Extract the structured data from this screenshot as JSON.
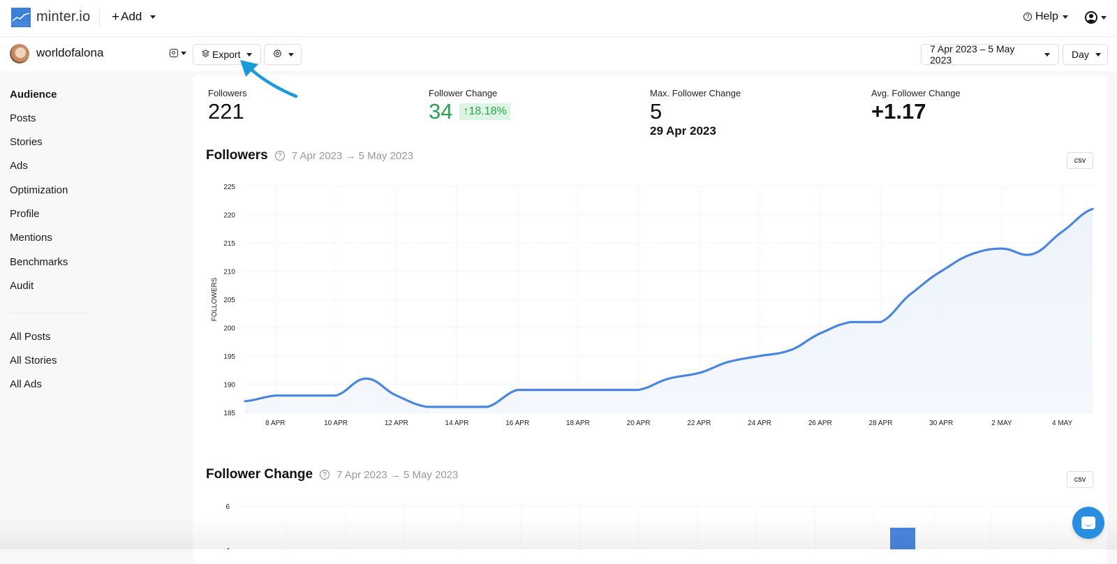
{
  "topbar": {
    "brand": "minter.io",
    "add_label": "Add",
    "help_label": "Help"
  },
  "subbar": {
    "account_name": "worldofalona",
    "export_label": "Export",
    "date_range": "7 Apr 2023 – 5 May 2023",
    "granularity": "Day"
  },
  "sidebar": {
    "items": [
      {
        "label": "Audience",
        "active": true
      },
      {
        "label": "Posts"
      },
      {
        "label": "Stories"
      },
      {
        "label": "Ads"
      },
      {
        "label": "Optimization"
      },
      {
        "label": "Profile"
      },
      {
        "label": "Mentions"
      },
      {
        "label": "Benchmarks"
      },
      {
        "label": "Audit"
      }
    ],
    "secondary": [
      {
        "label": "All Posts"
      },
      {
        "label": "All Stories"
      },
      {
        "label": "All Ads"
      }
    ]
  },
  "stats": {
    "followers": {
      "label": "Followers",
      "value": "221"
    },
    "follower_change": {
      "label": "Follower Change",
      "value": "34",
      "pct": "18.18%"
    },
    "max_change": {
      "label": "Max. Follower Change",
      "value": "5",
      "date": "29 Apr 2023"
    },
    "avg_change": {
      "label": "Avg. Follower Change",
      "value": "+1.17"
    }
  },
  "sections": {
    "followers": {
      "title": "Followers",
      "range": "7 Apr 2023 → 5 May 2023",
      "csv": "csv"
    },
    "follower_change": {
      "title": "Follower Change",
      "range": "7 Apr 2023 → 5 May 2023",
      "csv": "csv"
    }
  },
  "colors": {
    "accent": "#3b7fd9",
    "line": "#4a86e0",
    "positive": "#2ea14f",
    "positive_bg": "#dcf5e3",
    "chat": "#2a8ee0",
    "annotation_arrow": "#1a9ad6"
  },
  "chart_data": [
    {
      "type": "area",
      "title": "Followers",
      "subtitle": "7 Apr 2023 → 5 May 2023",
      "xlabel": "",
      "ylabel": "FOLLOWERS",
      "ylim": [
        185,
        225
      ],
      "yticks": [
        185,
        190,
        195,
        200,
        205,
        210,
        215,
        220,
        225
      ],
      "xtick_labels": [
        "8 APR",
        "10 APR",
        "12 APR",
        "14 APR",
        "16 APR",
        "18 APR",
        "20 APR",
        "22 APR",
        "24 APR",
        "26 APR",
        "28 APR",
        "30 APR",
        "2 MAY",
        "4 MAY"
      ],
      "grid": true,
      "x": [
        "7 Apr",
        "8 Apr",
        "9 Apr",
        "10 Apr",
        "11 Apr",
        "12 Apr",
        "13 Apr",
        "14 Apr",
        "15 Apr",
        "16 Apr",
        "17 Apr",
        "18 Apr",
        "19 Apr",
        "20 Apr",
        "21 Apr",
        "22 Apr",
        "23 Apr",
        "24 Apr",
        "25 Apr",
        "26 Apr",
        "27 Apr",
        "28 Apr",
        "29 Apr",
        "30 Apr",
        "1 May",
        "2 May",
        "3 May",
        "4 May",
        "5 May"
      ],
      "values": [
        187,
        188,
        188,
        188,
        191,
        188,
        186,
        186,
        186,
        189,
        189,
        189,
        189,
        189,
        191,
        192,
        194,
        195,
        196,
        199,
        201,
        201,
        206,
        210,
        213,
        214,
        213,
        217,
        221
      ]
    },
    {
      "type": "bar",
      "title": "Follower Change",
      "subtitle": "7 Apr 2023 → 5 May 2023",
      "yticks_visible": [
        6
      ],
      "note": "chart partially cut off; one visible bar near 2 May"
    }
  ]
}
